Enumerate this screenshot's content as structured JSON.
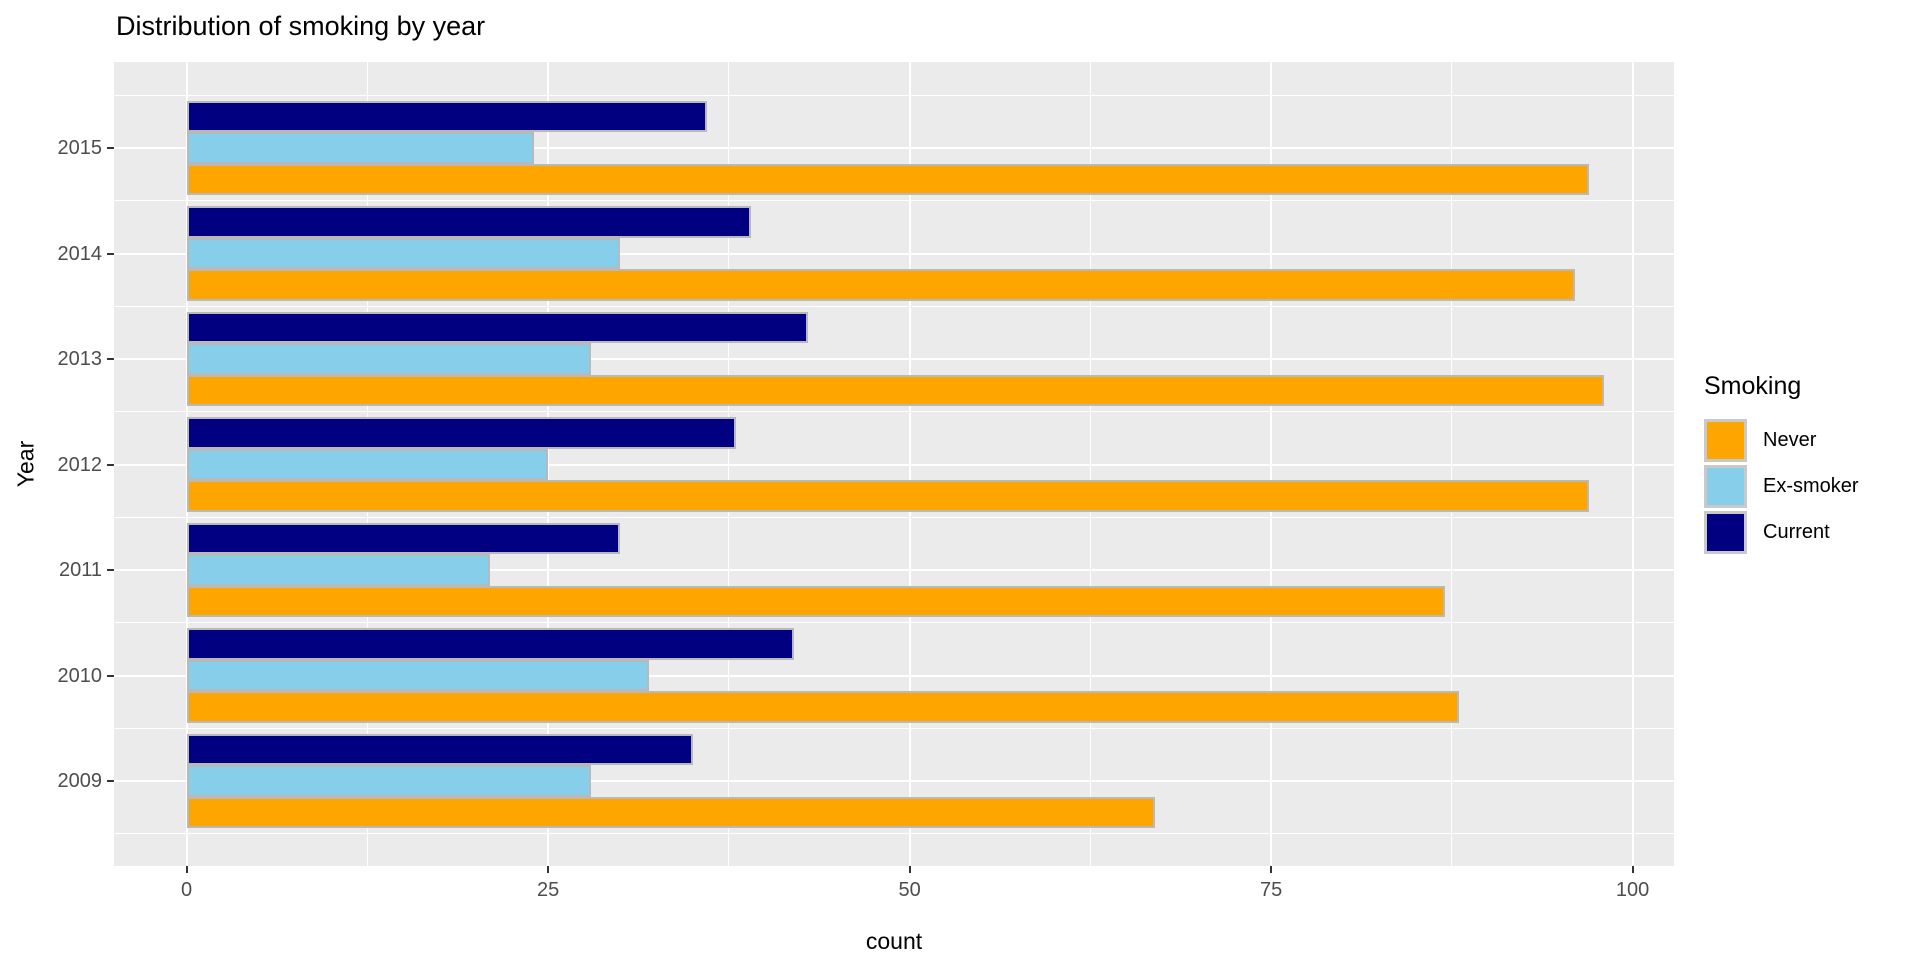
{
  "chart_data": {
    "type": "bar",
    "orientation": "horizontal",
    "title": "Distribution of smoking by year",
    "xlabel": "count",
    "ylabel": "Year",
    "categories": [
      "2015",
      "2014",
      "2013",
      "2012",
      "2011",
      "2010",
      "2009"
    ],
    "series": [
      {
        "name": "Never",
        "color": "#FFA500",
        "values": [
          97,
          96,
          98,
          97,
          87,
          88,
          67
        ]
      },
      {
        "name": "Ex-smoker",
        "color": "#87CEEB",
        "values": [
          24,
          30,
          28,
          25,
          21,
          32,
          28
        ]
      },
      {
        "name": "Current",
        "color": "#000080",
        "values": [
          36,
          39,
          43,
          38,
          30,
          42,
          35
        ]
      }
    ],
    "x_ticks": [
      0,
      25,
      50,
      75,
      100
    ],
    "x_minor_ticks": [
      12.5,
      37.5,
      62.5,
      87.5
    ],
    "xlim": [
      -5,
      103
    ],
    "grid": true,
    "legend": {
      "title": "Smoking",
      "position": "right"
    },
    "panel_background": "#EBEBEB",
    "gridline_color": "#FFFFFF",
    "bar_outline_color": "#b9b9b9",
    "tick_label_color": "#4D4D4D"
  }
}
